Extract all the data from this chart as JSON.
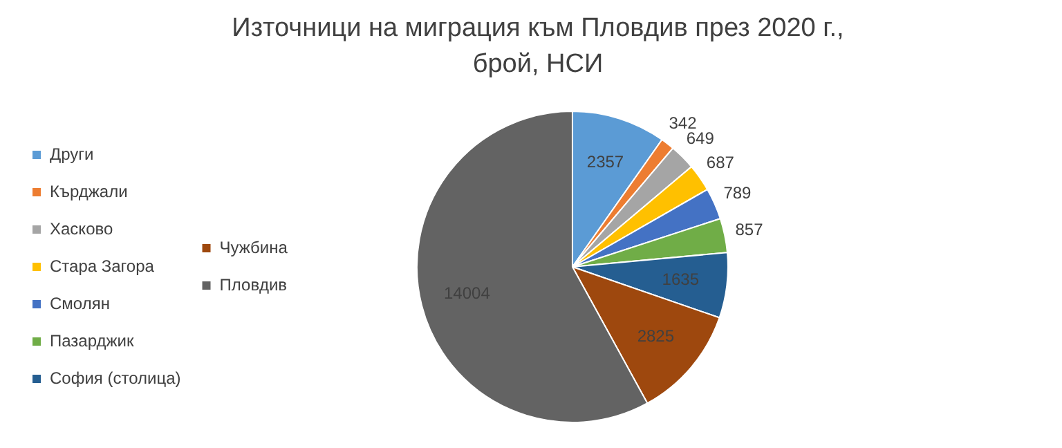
{
  "chart_data": {
    "type": "pie",
    "title": "Източници на миграция към Пловдив през 2020 г., брой, НСИ",
    "categories": [
      "Други",
      "Кърджали",
      "Хасково",
      "Стара Загора",
      "Смолян",
      "Пазарджик",
      "София (столица)",
      "Чужбина",
      "Пловдив"
    ],
    "values": [
      2357,
      342,
      649,
      687,
      789,
      857,
      1635,
      2825,
      14004
    ],
    "colors": [
      "#5b9bd5",
      "#ed7d31",
      "#a5a5a5",
      "#ffc000",
      "#4472c4",
      "#70ad47",
      "#255e91",
      "#9e480e",
      "#636363"
    ],
    "data_labels": true,
    "legend": "left"
  }
}
